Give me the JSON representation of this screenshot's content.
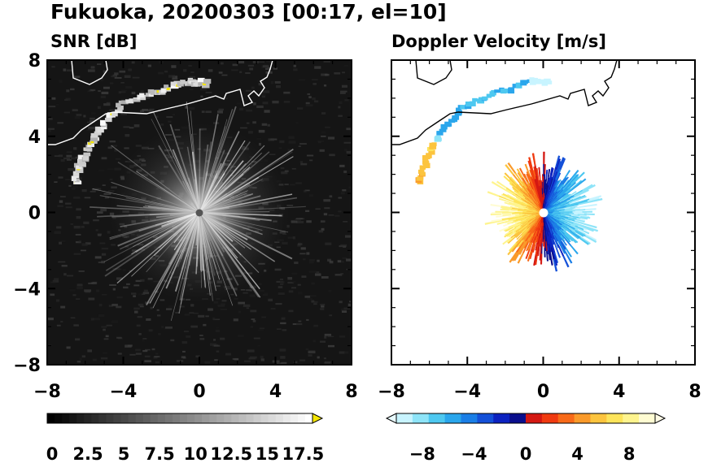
{
  "figure": {
    "title": "Fukuoka, 20200303 [00:17, el=10]"
  },
  "chart_data": [
    {
      "type": "heatmap",
      "title": "SNR [dB]",
      "xlim": [
        -8,
        8
      ],
      "ylim": [
        -8,
        8
      ],
      "x_ticks": [
        "−8",
        "−4",
        "0",
        "4",
        "8"
      ],
      "y_ticks": [
        "8",
        "4",
        "0",
        "−4",
        "−8"
      ],
      "background": "#151515",
      "radar_center": [
        0,
        0
      ],
      "max_range": 8,
      "colorbar": {
        "range": [
          0,
          18.5
        ],
        "ticks": [
          "0",
          "2.5",
          "5",
          "7.5",
          "10",
          "12.5",
          "15",
          "17.5"
        ],
        "ramp": [
          "#000000",
          "#ffffff"
        ],
        "extend_color": "#f5e600"
      },
      "echoes": [
        {
          "desc": "coastal clutter arc",
          "points": [
            [
              -6.6,
              1.6
            ],
            [
              -6.2,
              2.8
            ],
            [
              -5.4,
              4.2
            ],
            [
              -4.2,
              5.6
            ],
            [
              -2.4,
              6.3
            ],
            [
              -0.6,
              6.9
            ],
            [
              0.3,
              6.8
            ]
          ]
        }
      ]
    },
    {
      "type": "heatmap",
      "title": "Doppler Velocity [m/s]",
      "xlim": [
        -8,
        8
      ],
      "ylim": [
        -8,
        8
      ],
      "x_ticks": [
        "−8",
        "−4",
        "0",
        "4",
        "8"
      ],
      "y_ticks": [
        "8",
        "4",
        "0",
        "−4",
        "−8"
      ],
      "radar_center": [
        0,
        0
      ],
      "echo_extent_km": [
        1.5,
        3.2
      ],
      "colorbar": {
        "range": [
          -10,
          10
        ],
        "ticks": [
          "−8",
          "−4",
          "0",
          "4",
          "8"
        ],
        "colors": [
          "#c8f4ff",
          "#8ee4f8",
          "#4ec8f0",
          "#2aa6ec",
          "#1a7ee6",
          "#1450d8",
          "#0c22c0",
          "#0a0e8c",
          "#d41812",
          "#f03a10",
          "#f86a18",
          "#fa9a2a",
          "#fcc43e",
          "#fde45a",
          "#fef48e",
          "#fffcd2"
        ],
        "extend_left": "#e8fbff",
        "extend_right": "#fffbe6"
      }
    }
  ]
}
